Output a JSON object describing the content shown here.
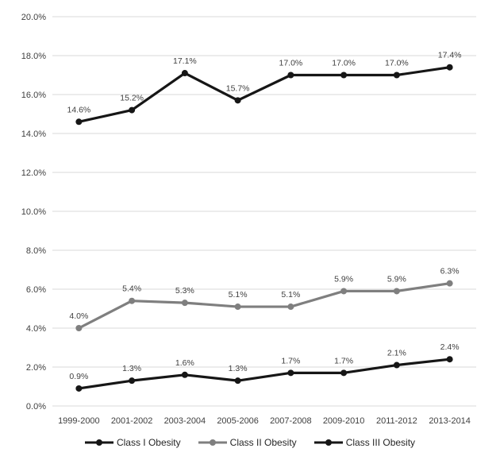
{
  "chart_data": {
    "type": "line",
    "title": "",
    "categories": [
      "1999-2000",
      "2001-2002",
      "2003-2004",
      "2005-2006",
      "2007-2008",
      "2009-2010",
      "2011-2012",
      "2013-2014"
    ],
    "series": [
      {
        "name": "Class I Obesity",
        "color": "#161616",
        "values": [
          14.6,
          15.2,
          17.1,
          15.7,
          17.0,
          17.0,
          17.0,
          17.4
        ],
        "point_labels": [
          "14.6%",
          "15.2%",
          "17.1%",
          "15.7%",
          "17.0%",
          "17.0%",
          "17.0%",
          "17.4%"
        ]
      },
      {
        "name": "Class II Obesity",
        "color": "#7f7f7f",
        "values": [
          4.0,
          5.4,
          5.3,
          5.1,
          5.1,
          5.9,
          5.9,
          6.3
        ],
        "point_labels": [
          "4.0%",
          "5.4%",
          "5.3%",
          "5.1%",
          "5.1%",
          "5.9%",
          "5.9%",
          "6.3%"
        ]
      },
      {
        "name": "Class III Obesity",
        "color": "#161616",
        "values": [
          0.9,
          1.3,
          1.6,
          1.3,
          1.7,
          1.7,
          2.1,
          2.4
        ],
        "point_labels": [
          "0.9%",
          "1.3%",
          "1.6%",
          "1.3%",
          "1.7%",
          "1.7%",
          "2.1%",
          "2.4%"
        ]
      }
    ],
    "ylim": [
      0,
      20
    ],
    "ytick_step": 2,
    "ytick_labels": [
      "0.0%",
      "2.0%",
      "4.0%",
      "6.0%",
      "8.0%",
      "10.0%",
      "12.0%",
      "14.0%",
      "16.0%",
      "18.0%",
      "20.0%"
    ],
    "grid": true,
    "legend_position": "bottom",
    "colors": {
      "background": "#ffffff",
      "gridline": "#d9d9d9",
      "axis_text": "#3f3f3f",
      "data_label": "#3f3f3f"
    }
  }
}
